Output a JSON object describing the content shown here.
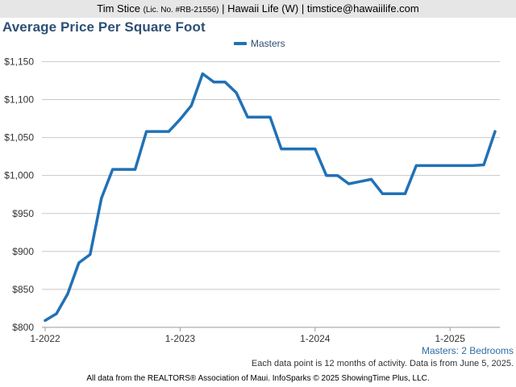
{
  "header": {
    "name": "Tim Stice",
    "license": "(Lic. No. #RB-21556)",
    "rest": "| Hawaii Life (W) | timstice@hawaiilife.com"
  },
  "chart_title": "Average Price Per Square Foot",
  "legend": {
    "series_name": "Masters"
  },
  "subtitle": "Masters: 2 Bedrooms",
  "note": "Each data point is 12 months of activity. Data is from June 5, 2025.",
  "credit": "All data from the REALTORS® Association of Maui. InfoSparks © 2025 ShowingTime Plus, LLC.",
  "colors": {
    "series": "#2171b5",
    "grid": "#c8c8c8",
    "title": "#2e4f73"
  },
  "chart_data": {
    "type": "line",
    "title": "Average Price Per Square Foot",
    "xlabel": "",
    "ylabel": "",
    "ylim": [
      800,
      1160
    ],
    "xlim": [
      "2022-01",
      "2025-05"
    ],
    "y_ticks": [
      800,
      850,
      900,
      950,
      1000,
      1050,
      1100,
      1150
    ],
    "y_tick_labels": [
      "$800",
      "$850",
      "$900",
      "$950",
      "$1,000",
      "$1,050",
      "$1,100",
      "$1,150"
    ],
    "x_ticks": [
      "2022-01",
      "2023-01",
      "2024-01",
      "2025-01"
    ],
    "x_tick_labels": [
      "1-2022",
      "1-2023",
      "1-2024",
      "1-2025"
    ],
    "grid": true,
    "legend_position": "top-center",
    "x": [
      "2022-01",
      "2022-02",
      "2022-03",
      "2022-04",
      "2022-05",
      "2022-06",
      "2022-07",
      "2022-08",
      "2022-09",
      "2022-10",
      "2022-11",
      "2022-12",
      "2023-01",
      "2023-02",
      "2023-03",
      "2023-04",
      "2023-05",
      "2023-06",
      "2023-07",
      "2023-08",
      "2023-09",
      "2023-10",
      "2023-11",
      "2023-12",
      "2024-01",
      "2024-02",
      "2024-03",
      "2024-04",
      "2024-05",
      "2024-06",
      "2024-07",
      "2024-08",
      "2024-09",
      "2024-10",
      "2024-11",
      "2024-12",
      "2025-01",
      "2025-02",
      "2025-03",
      "2025-04",
      "2025-05"
    ],
    "series": [
      {
        "name": "Masters",
        "values": [
          809,
          818,
          844,
          885,
          896,
          970,
          1008,
          1008,
          1008,
          1058,
          1058,
          1058,
          1074,
          1092,
          1134,
          1123,
          1123,
          1109,
          1077,
          1077,
          1077,
          1035,
          1035,
          1035,
          1035,
          1000,
          1000,
          989,
          992,
          995,
          976,
          976,
          976,
          1013,
          1013,
          1013,
          1013,
          1013,
          1013,
          1014,
          1058
        ]
      }
    ]
  }
}
